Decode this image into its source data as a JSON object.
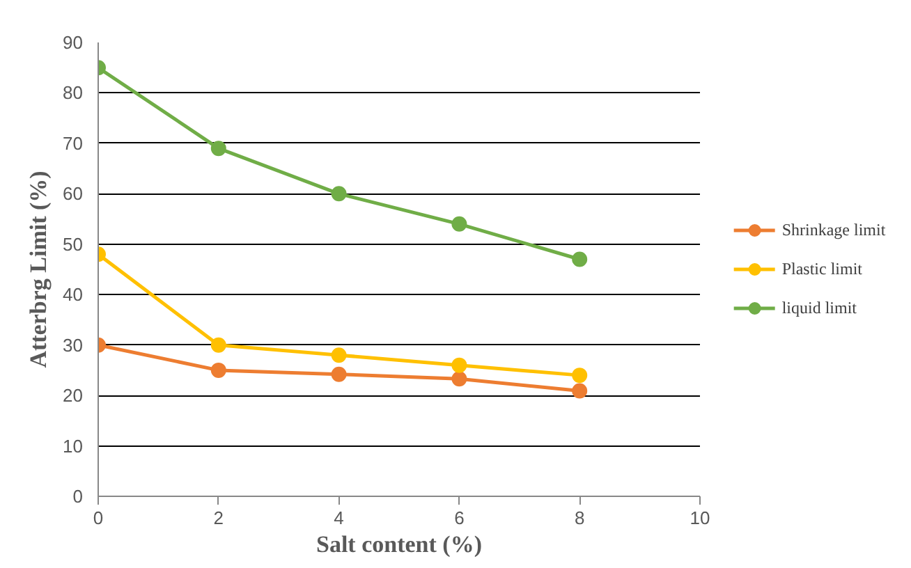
{
  "chart_data": {
    "type": "line",
    "xlabel": "Salt content (%)",
    "ylabel": "Atterbrg Limit (%)",
    "x": [
      0,
      2,
      4,
      6,
      8
    ],
    "series": [
      {
        "name": "Shrinkage limit",
        "color": "#ed7d31",
        "values": [
          30,
          25,
          24.2,
          23.3,
          20.9
        ]
      },
      {
        "name": "Plastic limit",
        "color": "#ffc000",
        "values": [
          48,
          30,
          28,
          26,
          24
        ]
      },
      {
        "name": "liquid limit",
        "color": "#70ad47",
        "values": [
          85,
          69,
          60,
          54,
          47
        ]
      }
    ],
    "xlim": [
      0,
      10
    ],
    "xticks": [
      0,
      2,
      4,
      6,
      8,
      10
    ],
    "ylim": [
      0,
      90
    ],
    "yticks": [
      0,
      10,
      20,
      30,
      40,
      50,
      60,
      70,
      80,
      90
    ],
    "grid": "y",
    "legend": "right",
    "marker": "circle",
    "line_style": "solid"
  }
}
